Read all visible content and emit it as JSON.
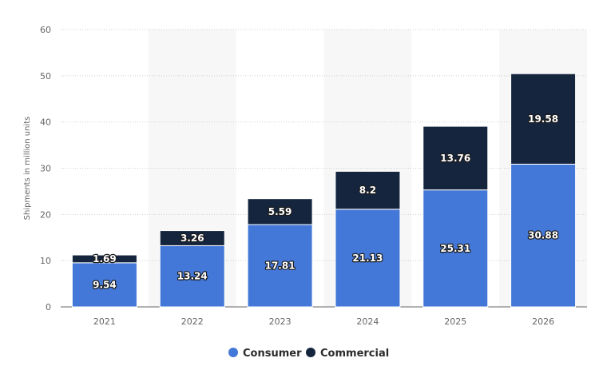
{
  "chart_data": {
    "type": "bar",
    "stacked": true,
    "categories": [
      "2021",
      "2022",
      "2023",
      "2024",
      "2025",
      "2026"
    ],
    "series": [
      {
        "name": "Consumer",
        "color": "#4478d8",
        "values": [
          9.54,
          13.24,
          17.81,
          21.13,
          25.31,
          30.88
        ]
      },
      {
        "name": "Commercial",
        "color": "#15253e",
        "values": [
          1.69,
          3.26,
          5.59,
          8.2,
          13.76,
          19.58
        ]
      }
    ],
    "title": "",
    "xlabel": "",
    "ylabel": "Shipments in million units",
    "ylim": [
      0,
      60
    ],
    "yticks": [
      0,
      10,
      20,
      30,
      40,
      50,
      60
    ],
    "grid": true,
    "legend_position": "bottom"
  }
}
